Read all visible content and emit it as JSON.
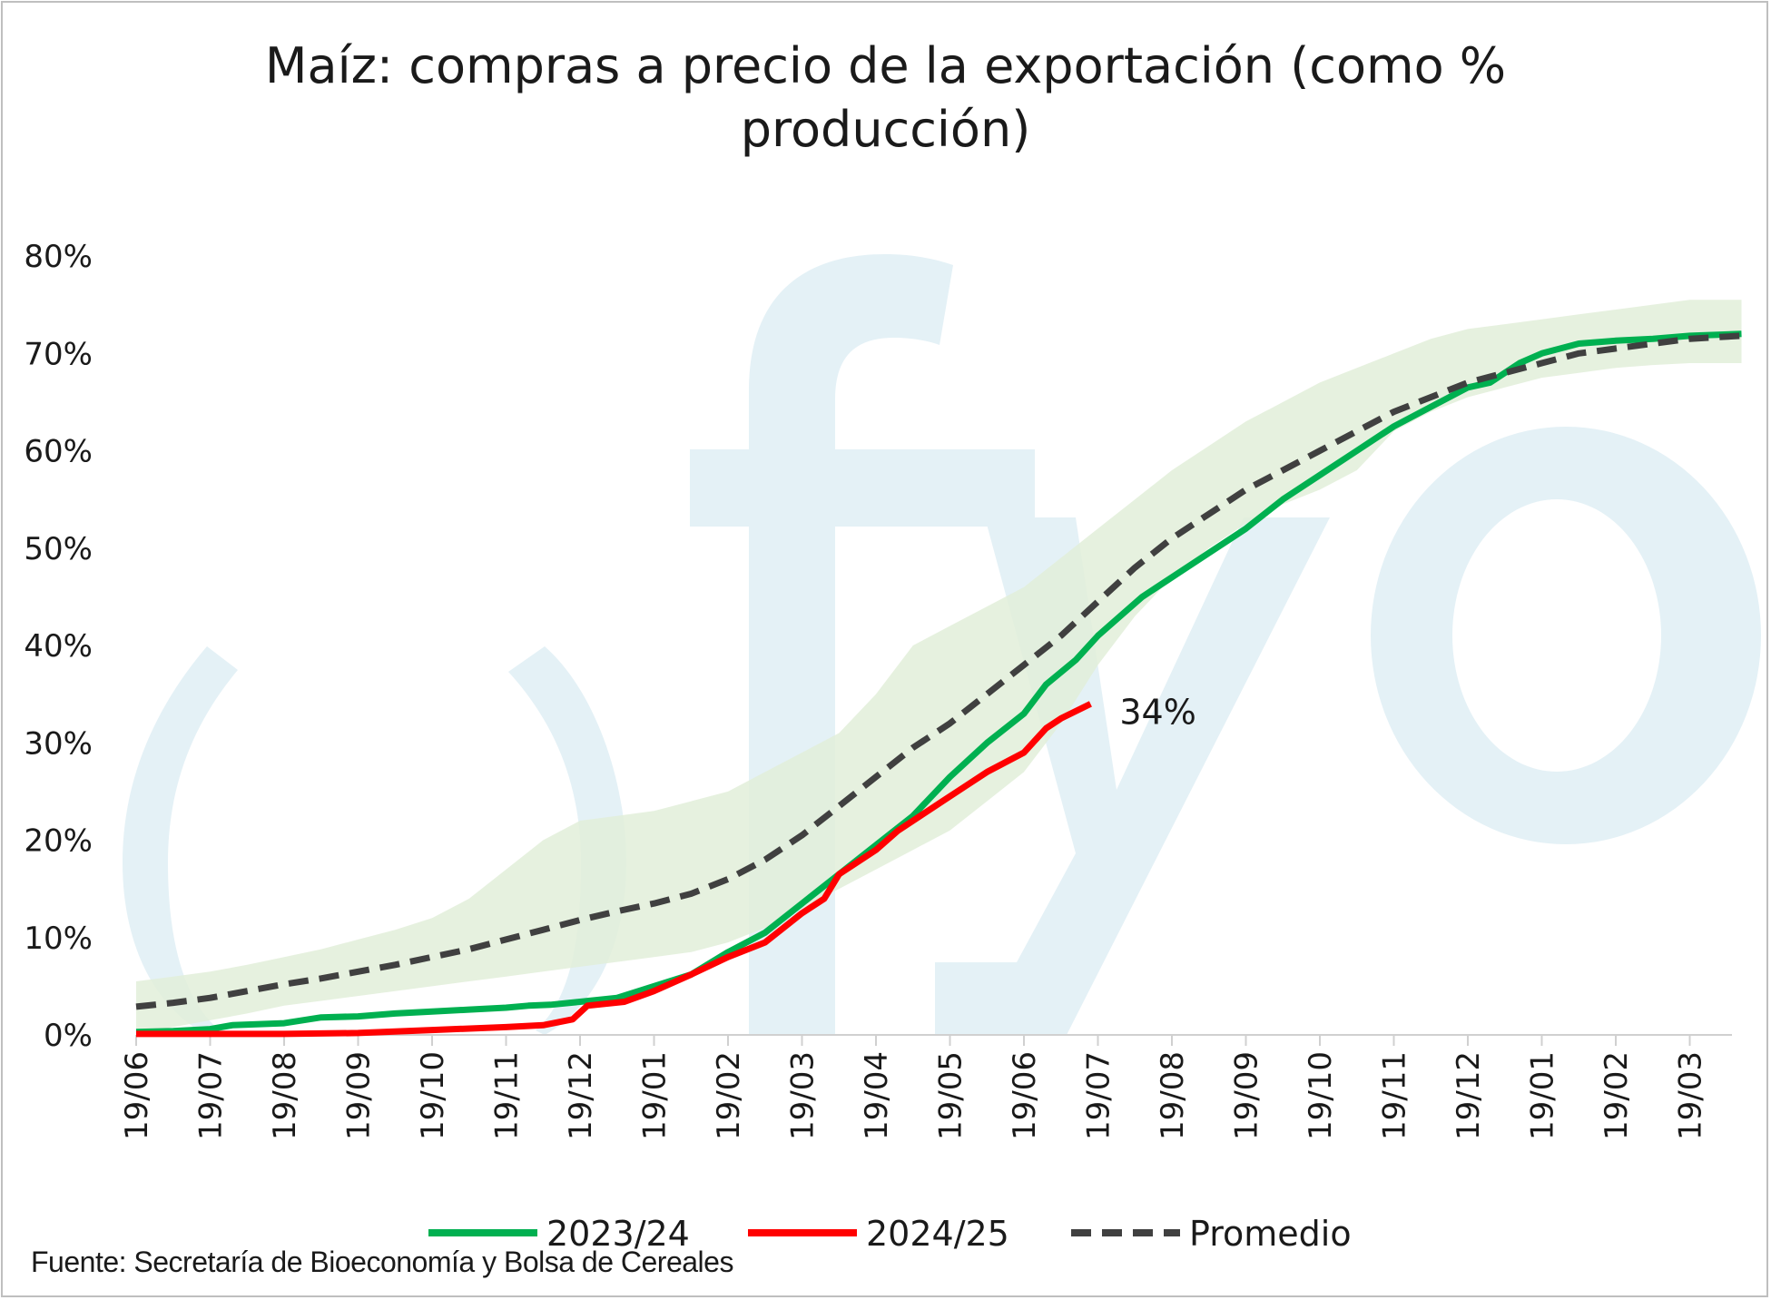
{
  "chart_data": {
    "type": "line",
    "title": "Maíz: compras a precio de la exportación (como % producción)",
    "title_lines": [
      "Maíz: compras a precio de la exportación (como %",
      "producción)"
    ],
    "xlabel": "",
    "ylabel": "",
    "x_tick_labels": [
      "19/06",
      "19/07",
      "19/08",
      "19/09",
      "19/10",
      "19/11",
      "19/12",
      "19/01",
      "19/02",
      "19/03",
      "19/04",
      "19/05",
      "19/06",
      "19/07",
      "19/08",
      "19/09",
      "19/10",
      "19/11",
      "19/12",
      "19/01",
      "19/02",
      "19/03"
    ],
    "y_tick_labels": [
      "0%",
      "10%",
      "20%",
      "30%",
      "40%",
      "50%",
      "60%",
      "70%",
      "80%"
    ],
    "ylim": [
      0,
      80
    ],
    "xlim": [
      0,
      21.7
    ],
    "grid": false,
    "legend_position": "bottom",
    "series": [
      {
        "name": "2023/24",
        "color": "#00b050",
        "style": "solid",
        "x": [
          0,
          0.5,
          1,
          1.3,
          2,
          2.5,
          3,
          3.5,
          4,
          4.5,
          5,
          5.3,
          5.6,
          6,
          6.5,
          7,
          7.5,
          8,
          8.5,
          9,
          9.5,
          10,
          10.5,
          11,
          11.5,
          12,
          12.3,
          12.7,
          13,
          13.3,
          13.6,
          14,
          14.5,
          15,
          15.5,
          16,
          16.5,
          17,
          17.5,
          18,
          18.3,
          18.5,
          18.7,
          19,
          19.5,
          20,
          20.5,
          21,
          21.7
        ],
        "y": [
          0.3,
          0.4,
          0.6,
          1.0,
          1.2,
          1.8,
          1.9,
          2.2,
          2.4,
          2.6,
          2.8,
          3.0,
          3.1,
          3.4,
          3.8,
          5.0,
          6.2,
          8.5,
          10.5,
          13.5,
          16.5,
          19.5,
          22.5,
          26.5,
          30.0,
          33.0,
          36.0,
          38.5,
          41.0,
          43.0,
          45.0,
          47.0,
          49.5,
          52.0,
          55.0,
          57.5,
          60.0,
          62.5,
          64.5,
          66.5,
          67.0,
          68.0,
          69.0,
          70.0,
          71.0,
          71.3,
          71.5,
          71.8,
          72.0
        ]
      },
      {
        "name": "2024/25",
        "color": "#ff0000",
        "style": "solid",
        "x": [
          0,
          1,
          2,
          3,
          4,
          5,
          5.5,
          5.9,
          6.1,
          6.6,
          7,
          7.5,
          8,
          8.5,
          9,
          9.3,
          9.5,
          9.7,
          10,
          10.3,
          10.6,
          10.9,
          11.2,
          11.5,
          12,
          12.3,
          12.5,
          12.9
        ],
        "y": [
          0.1,
          0.1,
          0.1,
          0.2,
          0.5,
          0.8,
          1.0,
          1.6,
          3.0,
          3.4,
          4.5,
          6.2,
          8.0,
          9.5,
          12.5,
          14.0,
          16.5,
          17.5,
          19.0,
          21.0,
          22.5,
          24.0,
          25.5,
          27.0,
          29.0,
          31.5,
          32.5,
          34.0
        ]
      },
      {
        "name": "Promedio",
        "color": "#404040",
        "style": "dashed",
        "x": [
          0,
          0.5,
          1,
          1.5,
          2,
          2.5,
          3,
          3.5,
          4,
          4.5,
          5,
          5.5,
          6,
          6.5,
          7,
          7.5,
          8,
          8.5,
          9,
          9.5,
          10,
          10.5,
          11,
          11.5,
          12,
          12.5,
          13,
          13.5,
          14,
          14.5,
          15,
          15.5,
          16,
          16.5,
          17,
          17.5,
          18,
          18.5,
          19,
          19.5,
          20,
          20.5,
          21,
          21.7
        ],
        "y": [
          2.9,
          3.3,
          3.8,
          4.5,
          5.2,
          5.8,
          6.5,
          7.2,
          8.0,
          8.8,
          9.8,
          10.8,
          11.8,
          12.7,
          13.5,
          14.5,
          16.0,
          18.0,
          20.5,
          23.5,
          26.5,
          29.5,
          32.0,
          35.0,
          38.0,
          41.0,
          44.5,
          48.0,
          51.0,
          53.5,
          56.0,
          58.0,
          60.0,
          62.0,
          64.0,
          65.5,
          67.0,
          68.0,
          69.0,
          70.0,
          70.5,
          71.0,
          71.5,
          71.8
        ]
      }
    ],
    "band": {
      "color": "#e2efd9",
      "x": [
        0,
        0.5,
        1,
        1.5,
        2,
        2.5,
        3,
        3.5,
        4,
        4.5,
        5,
        5.5,
        6,
        6.5,
        7,
        7.5,
        8,
        8.5,
        9,
        9.5,
        10,
        10.5,
        11,
        11.5,
        12,
        12.5,
        13,
        13.5,
        14,
        14.5,
        15,
        15.5,
        16,
        16.5,
        17,
        17.5,
        18,
        18.5,
        19,
        19.5,
        20,
        20.5,
        21,
        21.7
      ],
      "upper": [
        5.5,
        6.0,
        6.5,
        7.2,
        8.0,
        8.8,
        9.8,
        10.8,
        12.0,
        14.0,
        17.0,
        20.0,
        22.0,
        22.5,
        23.0,
        24.0,
        25.0,
        27.0,
        29.0,
        31.0,
        35.0,
        40.0,
        42.0,
        44.0,
        46.0,
        49.0,
        52.0,
        55.0,
        58.0,
        60.5,
        63.0,
        65.0,
        67.0,
        68.5,
        70.0,
        71.5,
        72.5,
        73.0,
        73.5,
        74.0,
        74.5,
        75.0,
        75.5,
        75.5
      ],
      "lower": [
        0.2,
        0.8,
        1.5,
        2.2,
        3.0,
        3.5,
        4.0,
        4.5,
        5.0,
        5.5,
        6.0,
        6.5,
        7.0,
        7.5,
        8.0,
        8.5,
        9.5,
        11.0,
        13.0,
        15.0,
        17.0,
        19.0,
        21.0,
        24.0,
        27.0,
        32.0,
        38.0,
        43.0,
        47.0,
        50.0,
        52.5,
        54.5,
        56.0,
        58.0,
        62.0,
        64.0,
        65.5,
        66.5,
        67.5,
        68.0,
        68.5,
        68.8,
        69.0,
        69.0
      ]
    },
    "annotations": [
      {
        "text": "34%",
        "x": 12.9,
        "y": 34.0
      }
    ]
  },
  "watermark": {
    "text": "cfyo",
    "color": "#e4f1f6"
  },
  "source": "Fuente: Secretaría de Bioeconomía y Bolsa de Cereales",
  "colors": {
    "axis": "#d0d0d0",
    "text": "#1a1a1a",
    "background": "#ffffff"
  }
}
